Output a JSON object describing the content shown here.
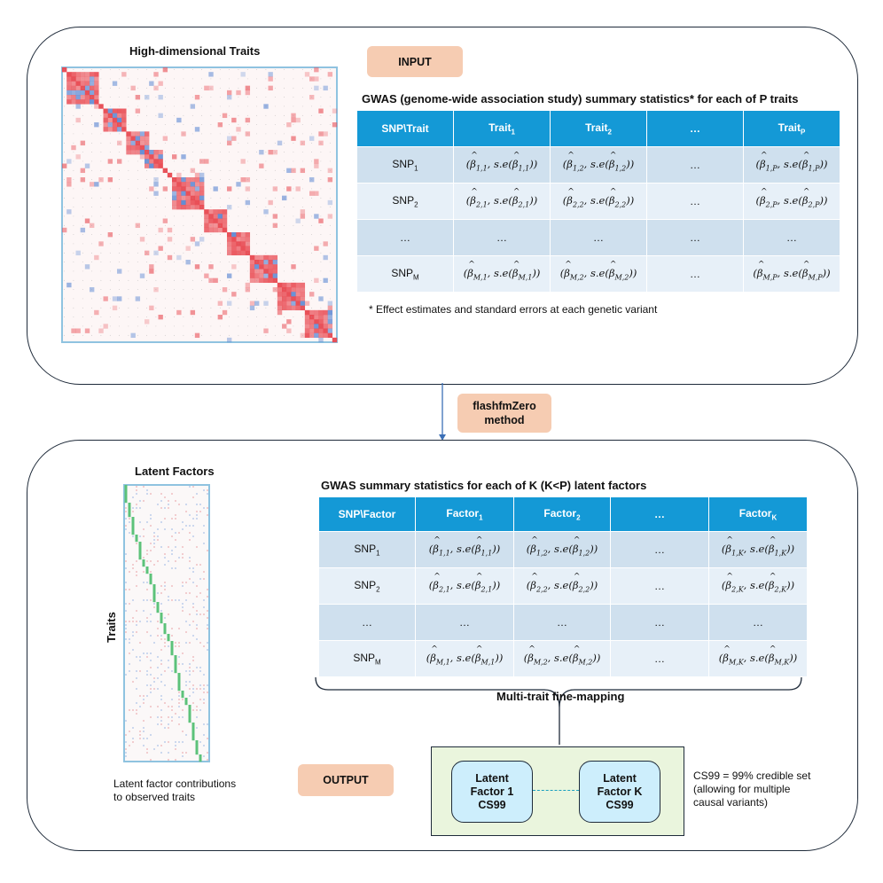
{
  "top": {
    "heatmap_title": "High-dimensional Traits",
    "input_label": "INPUT",
    "table_title": "GWAS (genome-wide association study) summary statistics* for each of P traits",
    "table": {
      "header": [
        "SNP\\Trait",
        "Trait",
        "Trait",
        "…",
        "Trait"
      ],
      "header_subs": [
        "",
        "1",
        "2",
        "",
        "P"
      ],
      "rows": [
        {
          "snp": "SNP",
          "sub": "1",
          "cells": [
            [
              "1,1",
              "1,1"
            ],
            [
              "1,2",
              "1,2"
            ],
            null,
            [
              "1,P",
              "1,P"
            ]
          ]
        },
        {
          "snp": "SNP",
          "sub": "2",
          "cells": [
            [
              "2,1",
              "2,1"
            ],
            [
              "2,2",
              "2,2"
            ],
            null,
            [
              "2,P",
              "2,P"
            ]
          ]
        },
        {
          "snp": "…",
          "sub": "",
          "cells": [
            "…",
            "…",
            "…",
            "…"
          ]
        },
        {
          "snp": "SNP",
          "sub": "M",
          "cells": [
            [
              "M,1",
              "M,1"
            ],
            [
              "M,2",
              "M,2"
            ],
            null,
            [
              "M,P",
              "M,P"
            ]
          ]
        }
      ]
    },
    "footnote": "* Effect estimates and standard errors at each genetic variant"
  },
  "method_label": [
    "flashfmZero",
    "method"
  ],
  "bottom": {
    "factors_title": "Latent Factors",
    "traits_axis_label": "Traits",
    "factors_caption": [
      "Latent factor contributions",
      "to observed traits"
    ],
    "table_title": "GWAS summary statistics for each of K (K<P) latent factors",
    "table": {
      "header": [
        "SNP\\Factor",
        "Factor",
        "Factor",
        "…",
        "Factor"
      ],
      "header_subs": [
        "",
        "1",
        "2",
        "",
        "K"
      ],
      "rows": [
        {
          "snp": "SNP",
          "sub": "1",
          "cells": [
            [
              "1,1",
              "1,1"
            ],
            [
              "1,2",
              "1,2"
            ],
            null,
            [
              "1,K",
              "1,K"
            ]
          ]
        },
        {
          "snp": "SNP",
          "sub": "2",
          "cells": [
            [
              "2,1",
              "2,1"
            ],
            [
              "2,2",
              "2,2"
            ],
            null,
            [
              "2,K",
              "2,K"
            ]
          ]
        },
        {
          "snp": "…",
          "sub": "",
          "cells": [
            "…",
            "…",
            "…",
            "…"
          ]
        },
        {
          "snp": "SNP",
          "sub": "M",
          "cells": [
            [
              "M,1",
              "M,1"
            ],
            [
              "M,2",
              "M,2"
            ],
            null,
            [
              "M,K",
              "M,K"
            ]
          ]
        }
      ]
    },
    "finemap_label": "Multi-trait fine-mapping",
    "output_label": "OUTPUT",
    "factor_box_1": [
      "Latent",
      "Factor 1",
      "CS99"
    ],
    "factor_box_k": [
      "Latent",
      "Factor K",
      "CS99"
    ],
    "cs99_note": [
      "CS99 = 99% credible set",
      "(allowing for multiple",
      "causal variants)"
    ]
  },
  "colors": {
    "header_blue": "#1499d6",
    "row_dark": "#cfe0ee",
    "row_light": "#e7f0f8",
    "pill": "#f6ccb2",
    "heat_red": "#e8474f",
    "heat_blue": "#4f7fd0",
    "factor_green": "#5cc27a"
  }
}
